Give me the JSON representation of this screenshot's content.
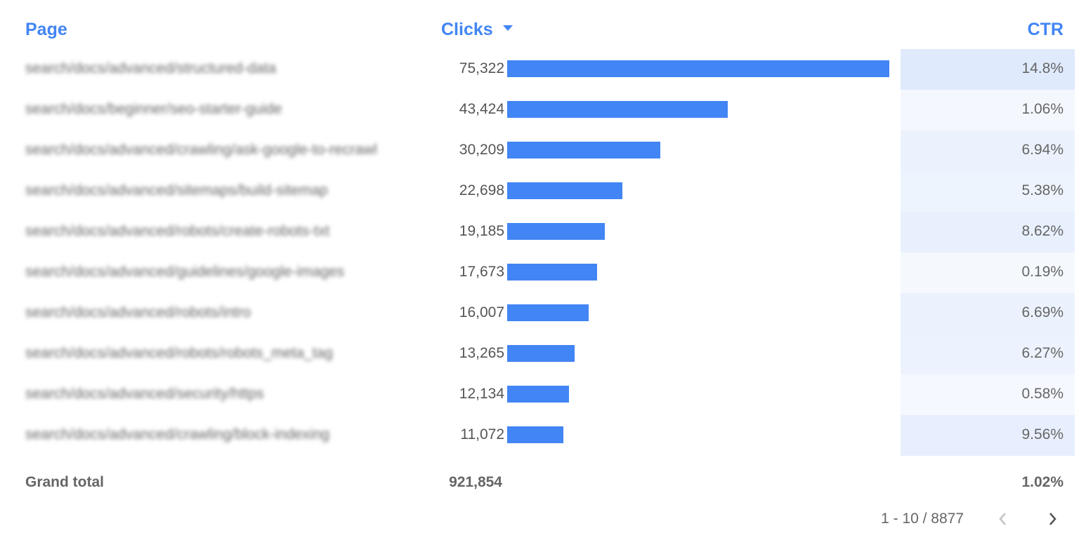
{
  "table": {
    "columns": {
      "page": "Page",
      "clicks": "Clicks",
      "ctr": "CTR"
    },
    "sort": {
      "column": "Clicks",
      "direction": "descending"
    },
    "bar_color": "#4285f4",
    "heat_color": "#4285f4",
    "rows": [
      {
        "page": "search/docs/advanced/structured-data",
        "clicks": "75,322",
        "clicks_value": 75322,
        "ctr": "14.8%",
        "ctr_value": 14.8
      },
      {
        "page": "search/docs/beginner/seo-starter-guide",
        "clicks": "43,424",
        "clicks_value": 43424,
        "ctr": "1.06%",
        "ctr_value": 1.06
      },
      {
        "page": "search/docs/advanced/crawling/ask-google-to-recrawl",
        "clicks": "30,209",
        "clicks_value": 30209,
        "ctr": "6.94%",
        "ctr_value": 6.94
      },
      {
        "page": "search/docs/advanced/sitemaps/build-sitemap",
        "clicks": "22,698",
        "clicks_value": 22698,
        "ctr": "5.38%",
        "ctr_value": 5.38
      },
      {
        "page": "search/docs/advanced/robots/create-robots-txt",
        "clicks": "19,185",
        "clicks_value": 19185,
        "ctr": "8.62%",
        "ctr_value": 8.62
      },
      {
        "page": "search/docs/advanced/guidelines/google-images",
        "clicks": "17,673",
        "clicks_value": 17673,
        "ctr": "0.19%",
        "ctr_value": 0.19
      },
      {
        "page": "search/docs/advanced/robots/intro",
        "clicks": "16,007",
        "clicks_value": 16007,
        "ctr": "6.69%",
        "ctr_value": 6.69
      },
      {
        "page": "search/docs/advanced/robots/robots_meta_tag",
        "clicks": "13,265",
        "clicks_value": 13265,
        "ctr": "6.27%",
        "ctr_value": 6.27
      },
      {
        "page": "search/docs/advanced/security/https",
        "clicks": "12,134",
        "clicks_value": 12134,
        "ctr": "0.58%",
        "ctr_value": 0.58
      },
      {
        "page": "search/docs/advanced/crawling/block-indexing",
        "clicks": "11,072",
        "clicks_value": 11072,
        "ctr": "9.56%",
        "ctr_value": 9.56
      }
    ],
    "grand_total": {
      "label": "Grand total",
      "clicks": "921,854",
      "ctr": "1.02%"
    }
  },
  "pagination": {
    "range": "1 - 10 / 8877",
    "prev_enabled": false,
    "next_enabled": true
  }
}
